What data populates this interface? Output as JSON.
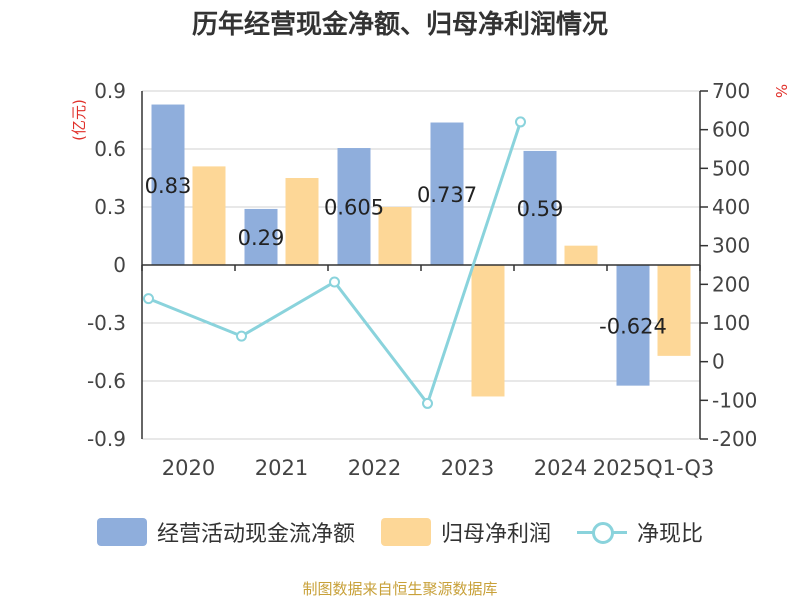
{
  "title": "历年经营现金净额、归母净利润情况",
  "source": "制图数据来自恒生聚源数据库",
  "colors": {
    "series1": "#8faedc",
    "series2": "#fdd797",
    "series3": "#8ad3dc",
    "axis_label": "#e0302a"
  },
  "chart_data": {
    "type": "bar",
    "categories": [
      "2020",
      "2021",
      "2022",
      "2023",
      "2024",
      "2025Q1-Q3"
    ],
    "series": [
      {
        "name": "经营活动现金流净额",
        "type": "bar",
        "axis": "left",
        "values": [
          0.83,
          0.29,
          0.605,
          0.737,
          0.59,
          -0.624
        ],
        "labels": [
          "0.83",
          "0.29",
          "0.605",
          "0.737",
          "0.59",
          "-0.624"
        ]
      },
      {
        "name": "归母净利润",
        "type": "bar",
        "axis": "left",
        "values": [
          0.51,
          0.45,
          0.3,
          -0.68,
          0.1,
          -0.47
        ]
      },
      {
        "name": "净现比",
        "type": "line",
        "axis": "right",
        "values": [
          163,
          66,
          206,
          -108,
          620,
          null
        ]
      }
    ],
    "yleft": {
      "label": "(亿元)",
      "min": -0.9,
      "max": 0.9,
      "ticks": [
        "0.9",
        "0.6",
        "0.3",
        "0",
        "-0.3",
        "-0.6",
        "-0.9"
      ]
    },
    "yright": {
      "label": "%",
      "min": -200,
      "max": 700,
      "ticks": [
        "700",
        "600",
        "500",
        "400",
        "300",
        "200",
        "100",
        "0",
        "-100",
        "-200"
      ]
    },
    "grid": true,
    "legend_position": "bottom"
  }
}
